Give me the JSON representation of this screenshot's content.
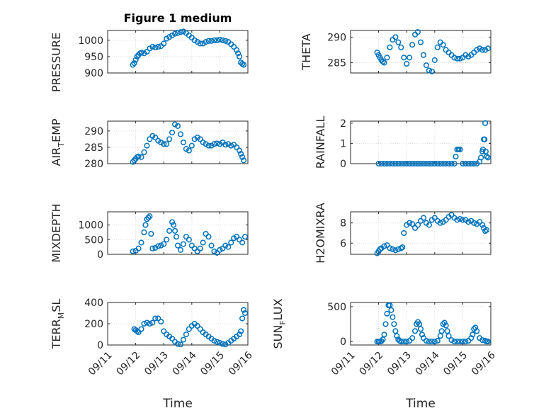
{
  "chart_data": [
    {
      "id": "pressure",
      "type": "scatter",
      "title": "Figure 1 medium",
      "ylabel": "PRESSURE",
      "ylim": [
        900,
        1030
      ],
      "yticks": [
        900,
        950,
        1000
      ],
      "ytick_labels": [
        "900",
        "950",
        "1000"
      ],
      "xlim": [
        0,
        5
      ],
      "xticks": [
        0,
        1,
        2,
        3,
        4,
        5
      ],
      "xtick_labels": [
        "09/11",
        "09/12",
        "09/13",
        "09/14",
        "09/15",
        "09/16"
      ],
      "show_xticklabels": false,
      "xlabel": "",
      "grid": true,
      "x": [
        0.9,
        0.95,
        1.0,
        1.05,
        1.1,
        1.15,
        1.2,
        1.3,
        1.4,
        1.5,
        1.6,
        1.7,
        1.8,
        1.9,
        2.0,
        2.1,
        2.2,
        2.3,
        2.4,
        2.5,
        2.6,
        2.7,
        2.8,
        2.9,
        3.0,
        3.1,
        3.2,
        3.3,
        3.4,
        3.5,
        3.6,
        3.7,
        3.8,
        3.9,
        4.0,
        4.1,
        4.2,
        4.3,
        4.4,
        4.5,
        4.6,
        4.65,
        4.7,
        4.75,
        4.8,
        4.85
      ],
      "y": [
        925,
        930,
        940,
        950,
        955,
        960,
        962,
        960,
        965,
        975,
        980,
        978,
        980,
        982,
        990,
        1005,
        1010,
        1015,
        1020,
        1022,
        1025,
        1027,
        1022,
        1015,
        1008,
        1000,
        995,
        990,
        990,
        995,
        998,
        998,
        1000,
        1000,
        1002,
        1000,
        998,
        995,
        988,
        980,
        970,
        960,
        950,
        932,
        928,
        925
      ]
    },
    {
      "id": "theta",
      "type": "scatter",
      "ylabel": "THETA",
      "ylim": [
        283,
        291.3
      ],
      "yticks": [
        285,
        290
      ],
      "ytick_labels": [
        "285",
        "290"
      ],
      "xlim": [
        0,
        5
      ],
      "xticks": [
        0,
        1,
        2,
        3,
        4,
        5
      ],
      "xtick_labels": [
        "09/11",
        "09/12",
        "09/13",
        "09/14",
        "09/15",
        "09/16"
      ],
      "show_xticklabels": false,
      "xlabel": "",
      "grid": true,
      "x": [
        0.95,
        1.0,
        1.05,
        1.1,
        1.15,
        1.2,
        1.3,
        1.4,
        1.5,
        1.6,
        1.7,
        1.8,
        1.9,
        2.0,
        2.1,
        2.2,
        2.3,
        2.4,
        2.5,
        2.6,
        2.7,
        2.8,
        2.9,
        3.0,
        3.1,
        3.2,
        3.3,
        3.4,
        3.5,
        3.6,
        3.7,
        3.8,
        3.9,
        4.0,
        4.1,
        4.2,
        4.3,
        4.4,
        4.5,
        4.6,
        4.7,
        4.8,
        4.9
      ],
      "y": [
        287,
        286.5,
        286,
        285.5,
        285.2,
        285,
        286,
        288,
        289.5,
        290,
        289,
        288,
        286,
        284.8,
        286,
        288.5,
        290.5,
        291,
        289,
        286.5,
        284.5,
        283.5,
        283.3,
        285.5,
        288,
        289,
        288.5,
        287.5,
        287,
        286.5,
        286,
        285.8,
        285.8,
        286,
        286.5,
        286.2,
        286.5,
        287,
        287.5,
        287.8,
        287.5,
        287.5,
        287.8
      ]
    },
    {
      "id": "air_temp",
      "type": "scatter",
      "ylabel": "AIR_TEMP",
      "ylabel_parts": [
        "AIR",
        "T",
        "EMP"
      ],
      "ylim": [
        280,
        293
      ],
      "yticks": [
        280,
        285,
        290
      ],
      "ytick_labels": [
        "280",
        "285",
        "290"
      ],
      "xlim": [
        0,
        5
      ],
      "xticks": [
        0,
        1,
        2,
        3,
        4,
        5
      ],
      "xtick_labels": [
        "09/11",
        "09/12",
        "09/13",
        "09/14",
        "09/15",
        "09/16"
      ],
      "show_xticklabels": false,
      "xlabel": "",
      "grid": true,
      "x": [
        0.9,
        0.95,
        1.0,
        1.05,
        1.1,
        1.2,
        1.3,
        1.4,
        1.5,
        1.6,
        1.7,
        1.8,
        1.9,
        2.0,
        2.1,
        2.2,
        2.3,
        2.4,
        2.5,
        2.6,
        2.7,
        2.8,
        2.9,
        3.0,
        3.1,
        3.2,
        3.3,
        3.4,
        3.5,
        3.6,
        3.7,
        3.8,
        3.9,
        4.0,
        4.1,
        4.2,
        4.3,
        4.4,
        4.5,
        4.6,
        4.7,
        4.75,
        4.8,
        4.85
      ],
      "y": [
        280.5,
        281,
        281.5,
        282,
        282.2,
        282,
        283.5,
        285.5,
        287.5,
        288.5,
        288,
        287,
        286.5,
        286,
        286,
        287.5,
        289.5,
        292,
        291.5,
        289,
        286.5,
        284.5,
        284,
        285.5,
        287.5,
        288,
        287.5,
        286.5,
        286,
        285.5,
        285.5,
        286,
        286.2,
        286,
        286.5,
        285.8,
        286,
        285.5,
        285.8,
        285,
        284,
        283,
        282,
        281
      ]
    },
    {
      "id": "rainfall",
      "type": "scatter",
      "ylabel": "RAINFALL",
      "ylim": [
        0,
        2.1
      ],
      "yticks": [
        0,
        1,
        2
      ],
      "ytick_labels": [
        "0",
        "1",
        "2"
      ],
      "xlim": [
        0,
        5
      ],
      "xticks": [
        0,
        1,
        2,
        3,
        4,
        5
      ],
      "xtick_labels": [
        "09/11",
        "09/12",
        "09/13",
        "09/14",
        "09/15",
        "09/16"
      ],
      "show_xticklabels": false,
      "xlabel": "",
      "grid": true,
      "x": [
        1.0,
        1.1,
        1.2,
        1.3,
        1.4,
        1.5,
        1.6,
        1.7,
        1.8,
        1.9,
        2.0,
        2.1,
        2.2,
        2.3,
        2.4,
        2.5,
        2.6,
        2.7,
        2.8,
        2.9,
        3.0,
        3.1,
        3.2,
        3.3,
        3.4,
        3.5,
        3.6,
        3.7,
        3.75,
        3.8,
        3.85,
        3.9,
        4.0,
        4.1,
        4.2,
        4.3,
        4.4,
        4.5,
        4.6,
        4.65,
        4.7,
        4.72,
        4.75,
        4.78,
        4.8,
        4.82,
        4.85,
        4.9
      ],
      "y": [
        0,
        0,
        0,
        0,
        0,
        0,
        0,
        0,
        0,
        0,
        0,
        0,
        0,
        0,
        0,
        0,
        0,
        0,
        0,
        0,
        0,
        0,
        0,
        0,
        0,
        0,
        0,
        0,
        0.35,
        0.7,
        0.7,
        0.7,
        0,
        0,
        0,
        0,
        0,
        0,
        0.1,
        0.3,
        0.6,
        0.7,
        1.2,
        1.2,
        2.0,
        0.6,
        0.35,
        0.3
      ]
    },
    {
      "id": "mixdepth",
      "type": "scatter",
      "ylabel": "MIXDEPTH",
      "ylim": [
        0,
        1450
      ],
      "yticks": [
        0,
        500,
        1000
      ],
      "ytick_labels": [
        "0",
        "500",
        "1000"
      ],
      "xlim": [
        0,
        5
      ],
      "xticks": [
        0,
        1,
        2,
        3,
        4,
        5
      ],
      "xtick_labels": [
        "09/11",
        "09/12",
        "09/13",
        "09/14",
        "09/15",
        "09/16"
      ],
      "show_xticklabels": false,
      "xlabel": "",
      "grid": true,
      "x": [
        0.9,
        1.0,
        1.1,
        1.2,
        1.3,
        1.35,
        1.4,
        1.45,
        1.5,
        1.55,
        1.6,
        1.7,
        1.8,
        1.9,
        2.0,
        2.1,
        2.2,
        2.3,
        2.35,
        2.4,
        2.45,
        2.5,
        2.6,
        2.7,
        2.8,
        2.9,
        3.0,
        3.1,
        3.2,
        3.3,
        3.4,
        3.5,
        3.6,
        3.7,
        3.8,
        3.9,
        4.0,
        4.1,
        4.2,
        4.3,
        4.4,
        4.5,
        4.6,
        4.7,
        4.8,
        4.9
      ],
      "y": [
        100,
        120,
        200,
        400,
        750,
        1000,
        1200,
        1250,
        1300,
        700,
        200,
        220,
        280,
        300,
        350,
        500,
        800,
        1100,
        1000,
        800,
        600,
        300,
        150,
        350,
        600,
        500,
        300,
        200,
        100,
        200,
        400,
        700,
        600,
        300,
        100,
        50,
        150,
        200,
        300,
        250,
        400,
        550,
        600,
        500,
        400,
        600
      ]
    },
    {
      "id": "h2omixra",
      "type": "scatter",
      "ylabel": "H2OMIXRA",
      "ylim": [
        4.9,
        9.1
      ],
      "yticks": [
        6,
        8
      ],
      "ytick_labels": [
        "6",
        "8"
      ],
      "xlim": [
        0,
        5
      ],
      "xticks": [
        0,
        1,
        2,
        3,
        4,
        5
      ],
      "xtick_labels": [
        "09/11",
        "09/12",
        "09/13",
        "09/14",
        "09/15",
        "09/16"
      ],
      "show_xticklabels": false,
      "xlabel": "",
      "grid": true,
      "x": [
        0.95,
        1.0,
        1.05,
        1.1,
        1.2,
        1.3,
        1.4,
        1.5,
        1.6,
        1.7,
        1.8,
        1.85,
        1.9,
        2.0,
        2.1,
        2.2,
        2.3,
        2.4,
        2.5,
        2.6,
        2.7,
        2.8,
        2.9,
        3.0,
        3.1,
        3.2,
        3.3,
        3.4,
        3.5,
        3.6,
        3.7,
        3.8,
        3.9,
        4.0,
        4.1,
        4.2,
        4.3,
        4.4,
        4.5,
        4.6,
        4.7,
        4.75,
        4.8,
        4.85
      ],
      "y": [
        5.0,
        5.2,
        5.4,
        5.5,
        5.7,
        5.8,
        5.5,
        5.4,
        5.3,
        5.4,
        5.5,
        5.6,
        7.0,
        7.8,
        8.0,
        7.9,
        7.5,
        7.8,
        8.2,
        8.5,
        8.0,
        7.8,
        8.3,
        8.5,
        8.2,
        8.0,
        8.1,
        8.3,
        8.6,
        8.8,
        8.5,
        8.3,
        8.4,
        8.3,
        8.3,
        8.1,
        8.2,
        8.0,
        7.9,
        8.1,
        7.8,
        7.5,
        7.2,
        7.3
      ]
    },
    {
      "id": "terr_msl",
      "type": "scatter",
      "ylabel": "TERR_MSL",
      "ylabel_parts": [
        "TERR",
        "M",
        "SL"
      ],
      "ylim": [
        0,
        400
      ],
      "yticks": [
        0,
        200,
        400
      ],
      "ytick_labels": [
        "0",
        "200",
        "400"
      ],
      "xlim": [
        0,
        5
      ],
      "xticks": [
        0,
        1,
        2,
        3,
        4,
        5
      ],
      "xtick_labels": [
        "09/11",
        "09/12",
        "09/13",
        "09/14",
        "09/15",
        "09/16"
      ],
      "show_xticklabels": true,
      "xlabel": "Time",
      "grid": true,
      "x": [
        0.95,
        1.0,
        1.05,
        1.1,
        1.2,
        1.3,
        1.4,
        1.5,
        1.6,
        1.7,
        1.8,
        1.9,
        2.0,
        2.1,
        2.2,
        2.3,
        2.4,
        2.5,
        2.6,
        2.7,
        2.8,
        2.9,
        3.0,
        3.1,
        3.2,
        3.3,
        3.4,
        3.5,
        3.6,
        3.7,
        3.8,
        3.9,
        4.0,
        4.1,
        4.2,
        4.3,
        4.4,
        4.5,
        4.6,
        4.7,
        4.75,
        4.8,
        4.85,
        4.9
      ],
      "y": [
        150,
        140,
        130,
        120,
        150,
        200,
        210,
        200,
        210,
        250,
        250,
        220,
        130,
        100,
        80,
        60,
        30,
        10,
        5,
        50,
        100,
        150,
        180,
        200,
        180,
        150,
        120,
        100,
        80,
        60,
        40,
        30,
        20,
        10,
        5,
        20,
        40,
        60,
        80,
        100,
        130,
        250,
        330,
        300
      ]
    },
    {
      "id": "sun_flux",
      "type": "scatter",
      "ylabel": "SUN_FLUX",
      "ylabel_parts": [
        "SUN",
        "F",
        "LUX"
      ],
      "ylim": [
        -50,
        560
      ],
      "yticks": [
        0,
        500
      ],
      "ytick_labels": [
        "0",
        "500"
      ],
      "xlim": [
        0,
        5
      ],
      "xticks": [
        0,
        1,
        2,
        3,
        4,
        5
      ],
      "xtick_labels": [
        "09/11",
        "09/12",
        "09/13",
        "09/14",
        "09/15",
        "09/16"
      ],
      "show_xticklabels": true,
      "xlabel": "Time",
      "grid": true,
      "x": [
        0.95,
        1.0,
        1.05,
        1.1,
        1.15,
        1.2,
        1.25,
        1.3,
        1.35,
        1.4,
        1.45,
        1.5,
        1.55,
        1.6,
        1.65,
        1.7,
        1.75,
        1.8,
        1.9,
        2.0,
        2.1,
        2.2,
        2.3,
        2.35,
        2.4,
        2.45,
        2.5,
        2.55,
        2.6,
        2.7,
        2.8,
        2.9,
        3.0,
        3.1,
        3.2,
        3.25,
        3.3,
        3.35,
        3.4,
        3.45,
        3.5,
        3.6,
        3.7,
        3.8,
        3.9,
        4.0,
        4.1,
        4.2,
        4.3,
        4.35,
        4.4,
        4.45,
        4.5,
        4.6,
        4.7,
        4.8,
        4.85,
        4.9
      ],
      "y": [
        0,
        0,
        0,
        5,
        30,
        100,
        250,
        400,
        520,
        520,
        450,
        350,
        250,
        150,
        80,
        30,
        10,
        0,
        0,
        0,
        10,
        50,
        150,
        250,
        280,
        250,
        180,
        100,
        50,
        10,
        0,
        0,
        0,
        10,
        80,
        150,
        250,
        270,
        230,
        150,
        80,
        20,
        0,
        0,
        0,
        0,
        0,
        10,
        50,
        100,
        180,
        200,
        150,
        50,
        20,
        10,
        0,
        0
      ]
    }
  ]
}
